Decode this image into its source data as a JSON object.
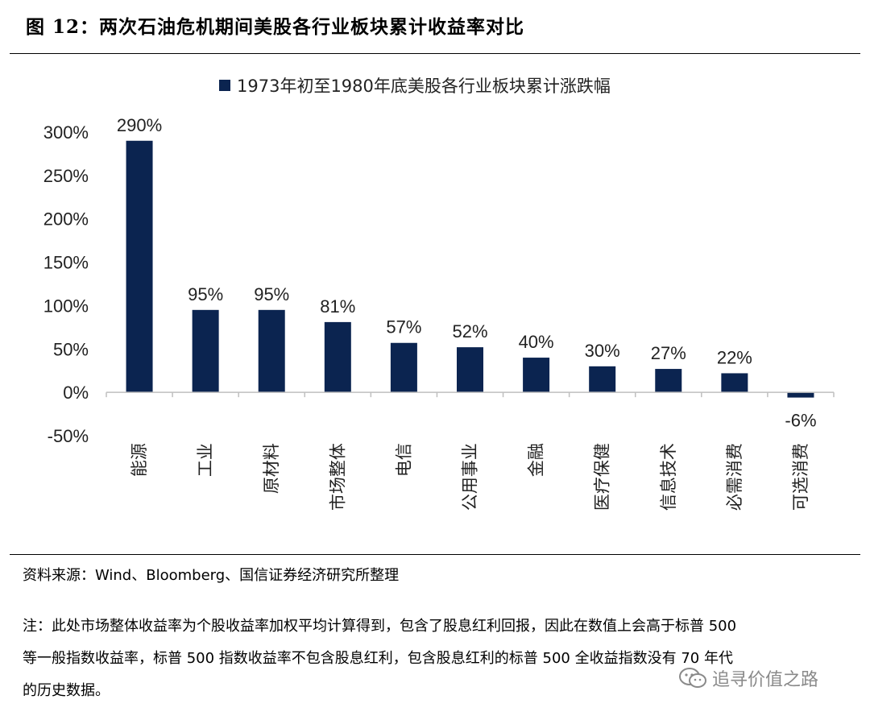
{
  "figure": {
    "title": "图 12：两次石油危机期间美股各行业板块累计收益率对比"
  },
  "chart_data": {
    "type": "bar",
    "legend": "1973年初至1980年底美股各行业板块累计涨跌幅",
    "legend_position": "top-center",
    "categories": [
      "能源",
      "工业",
      "原材料",
      "市场整体",
      "电信",
      "公用事业",
      "金融",
      "医疗保健",
      "信息技术",
      "必需消费",
      "可选消费"
    ],
    "values": [
      290,
      95,
      95,
      81,
      57,
      52,
      40,
      30,
      27,
      22,
      -6
    ],
    "data_labels": [
      "290%",
      "95%",
      "95%",
      "81%",
      "57%",
      "52%",
      "40%",
      "30%",
      "27%",
      "22%",
      "-6%"
    ],
    "ylim": [
      -50,
      300
    ],
    "yticks": [
      300,
      250,
      200,
      150,
      100,
      50,
      0,
      -50
    ],
    "ytick_labels": [
      "300%",
      "250%",
      "200%",
      "150%",
      "100%",
      "50%",
      "0%",
      "-50%"
    ],
    "grid": false,
    "bar_color": "#0b2450"
  },
  "source": "资料来源：Wind、Bloomberg、国信证券经济研究所整理",
  "note_lines": [
    "注：此处市场整体收益率为个股收益率加权平均计算得到，包含了股息红利回报，因此在数值上会高于标普 500",
    "等一般指数收益率，标普 500 指数收益率不包含股息红利，包含股息红利的标普 500 全收益指数没有 70 年代",
    "的历史数据。"
  ],
  "watermark": {
    "text": "追寻价值之路",
    "icon": "wechat-icon"
  }
}
